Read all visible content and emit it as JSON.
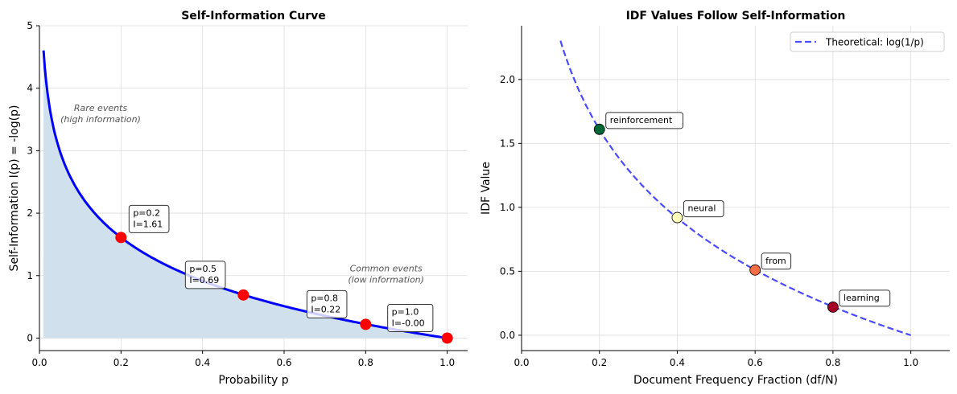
{
  "chart_data": [
    {
      "type": "line",
      "title": "Self-Information Curve",
      "xlabel": "Probability p",
      "ylabel": "Self-Information I(p) = -log(p)",
      "xlim": [
        0,
        1.05
      ],
      "ylim": [
        -0.2,
        5
      ],
      "xticks": [
        "0.0",
        "0.2",
        "0.4",
        "0.6",
        "0.8",
        "1.0"
      ],
      "yticks": [
        "0",
        "1",
        "2",
        "3",
        "4",
        "5"
      ],
      "grid": true,
      "curve": {
        "function": "-ln(p)",
        "x_range": [
          0.01,
          1.0
        ],
        "color": "#0000ff",
        "fill_color": "#d0e1ed"
      },
      "points": [
        {
          "x": 0.2,
          "y": 1.61,
          "label": [
            "p=0.2",
            "I=1.61"
          ]
        },
        {
          "x": 0.5,
          "y": 0.69,
          "label": [
            "p=0.5",
            "I=0.69"
          ]
        },
        {
          "x": 0.8,
          "y": 0.22,
          "label": [
            "p=0.8",
            "I=0.22"
          ]
        },
        {
          "x": 1.0,
          "y": 0.0,
          "label": [
            "p=1.0",
            "I=-0.00"
          ]
        }
      ],
      "point_color": "#ff0000",
      "annotations": [
        {
          "text": [
            "Rare events",
            "(high information)"
          ],
          "x": 0.15,
          "y": 3.6
        },
        {
          "text": [
            "Common events",
            "(low information)"
          ],
          "x": 0.85,
          "y": 0.63
        }
      ]
    },
    {
      "type": "scatter",
      "title": "IDF Values Follow Self-Information",
      "xlabel": "Document Frequency Fraction (df/N)",
      "ylabel": "IDF Value",
      "xlim": [
        0,
        1.1
      ],
      "ylim": [
        -0.12,
        2.42
      ],
      "xticks": [
        "0.0",
        "0.2",
        "0.4",
        "0.6",
        "0.8",
        "1.0"
      ],
      "yticks": [
        "0.0",
        "0.5",
        "1.0",
        "1.5",
        "2.0"
      ],
      "grid": true,
      "legend": {
        "position": "top-right",
        "entries": [
          "Theoretical: log(1/p)"
        ]
      },
      "theoretical": {
        "name": "Theoretical: log(1/p)",
        "function": "ln(1/p)",
        "x_range": [
          0.1,
          1.0
        ],
        "color": "#4a4aff",
        "style": "dashed"
      },
      "points": [
        {
          "x": 0.2,
          "y": 1.61,
          "label": "reinforcement",
          "color": "#006837"
        },
        {
          "x": 0.4,
          "y": 0.92,
          "label": "neural",
          "color": "#fefebd"
        },
        {
          "x": 0.6,
          "y": 0.51,
          "label": "from",
          "color": "#f46d43"
        },
        {
          "x": 0.8,
          "y": 0.22,
          "label": "learning",
          "color": "#a50026"
        }
      ]
    }
  ]
}
